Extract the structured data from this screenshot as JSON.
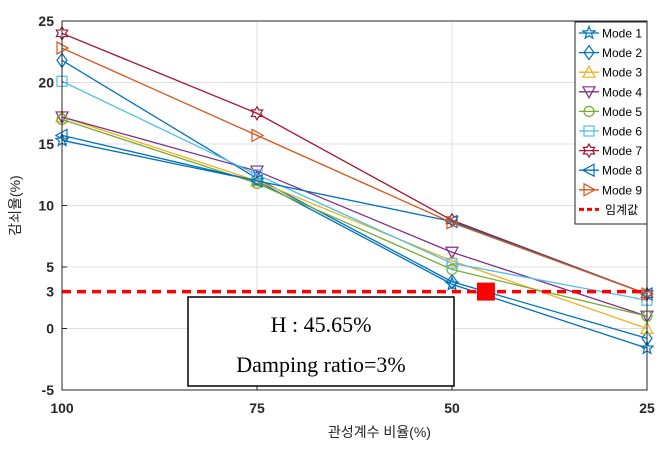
{
  "chart_data": {
    "type": "line",
    "xlabel": "관성계수 비율(%)",
    "ylabel": "감쇠율(%)",
    "x": [
      100,
      75,
      50,
      25
    ],
    "x_tick_labels": [
      "100",
      "75",
      "50",
      "25"
    ],
    "xlim": [
      100,
      25
    ],
    "ylim": [
      -5,
      25
    ],
    "y_ticks": [
      -5,
      0,
      3,
      5,
      10,
      15,
      20,
      25
    ],
    "y_tick_labels": [
      "-5",
      "0",
      "3",
      "5",
      "10",
      "15",
      "20",
      "25"
    ],
    "grid": true,
    "legend_position": "top-right",
    "series": [
      {
        "name": "Mode 1",
        "values": [
          15.3,
          12.0,
          3.6,
          -1.6
        ],
        "color": "#0072BD",
        "marker": "star"
      },
      {
        "name": "Mode 2",
        "values": [
          21.8,
          12.2,
          3.8,
          -0.8
        ],
        "color": "#0072BD",
        "marker": "diamond"
      },
      {
        "name": "Mode 3",
        "values": [
          17.2,
          12.0,
          5.5,
          0.0
        ],
        "color": "#EDB120",
        "marker": "triangle-up"
      },
      {
        "name": "Mode 4",
        "values": [
          17.2,
          12.8,
          6.2,
          1.0
        ],
        "color": "#7E2F8E",
        "marker": "triangle-down"
      },
      {
        "name": "Mode 5",
        "values": [
          17.0,
          11.8,
          4.8,
          1.0
        ],
        "color": "#77AC30",
        "marker": "circle"
      },
      {
        "name": "Mode 6",
        "values": [
          20.1,
          12.5,
          5.3,
          2.3
        ],
        "color": "#4DBEEE",
        "marker": "square"
      },
      {
        "name": "Mode 7",
        "values": [
          24.0,
          17.5,
          8.8,
          2.8
        ],
        "color": "#A2142F",
        "marker": "hexagram"
      },
      {
        "name": "Mode 8",
        "values": [
          15.7,
          12.0,
          8.7,
          2.8
        ],
        "color": "#0072BD",
        "marker": "triangle-left"
      },
      {
        "name": "Mode 9",
        "values": [
          22.8,
          15.7,
          8.6,
          2.8
        ],
        "color": "#D95319",
        "marker": "triangle-right"
      }
    ],
    "threshold": {
      "name": "임계값",
      "value": 3,
      "color": "#FF0000",
      "style": "dashed"
    },
    "critical_point": {
      "x": 45.65,
      "y": 3,
      "color": "#FF0000"
    },
    "annotation": {
      "line1": "H : 45.65%",
      "line2": "Damping ratio=3%"
    }
  }
}
